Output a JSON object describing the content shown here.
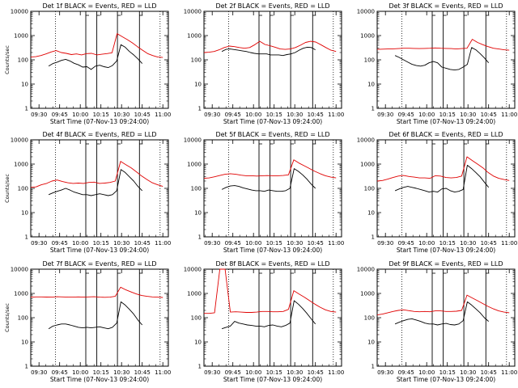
{
  "colors": {
    "events": "#000000",
    "lld": "#e00000",
    "background": "#ffffff"
  },
  "chart_data": [
    {
      "type": "line",
      "title": "Det 1f BLACK = Events, RED = LLD",
      "xlabel": "Start Time (07-Nov-13 09:24:00)",
      "ylabel": "Counts/sec",
      "xticks": [
        "09:30",
        "09:45",
        "10:00",
        "10:15",
        "10:30",
        "10:45",
        "11:00"
      ],
      "yticks": [
        "1",
        "10",
        "100",
        "1000",
        "10000"
      ],
      "yscale": "log",
      "ylim": [
        1,
        10000
      ],
      "xlim": [
        "09:24",
        "11:04"
      ],
      "vertical_lines": {
        "dotted": [
          "09:42",
          "10:58"
        ],
        "solid": [
          "10:04",
          "10:12",
          "10:27",
          "10:43"
        ]
      },
      "series": [
        {
          "color": "#000000",
          "x_start": "09:37",
          "x_end": "10:45",
          "y": [
            55,
            70,
            80,
            95,
            105,
            90,
            72,
            62,
            50,
            52,
            40,
            55,
            60,
            52,
            48,
            58,
            90,
            420,
            330,
            220,
            160,
            110,
            70
          ]
        },
        {
          "color": "#e00000",
          "x_start": "09:24",
          "x_end": "11:00",
          "y": [
            130,
            135,
            150,
            175,
            210,
            240,
            200,
            185,
            165,
            175,
            160,
            180,
            185,
            160,
            170,
            180,
            195,
            1200,
            900,
            680,
            500,
            350,
            250,
            180,
            150,
            130,
            125
          ]
        }
      ]
    },
    {
      "type": "line",
      "title": "Det 2f BLACK = Events, RED = LLD",
      "xlabel": "Start Time (07-Nov-13 09:24:00)",
      "ylabel": "",
      "xticks": [
        "09:30",
        "09:45",
        "10:00",
        "10:15",
        "10:30",
        "10:45",
        "11:00"
      ],
      "yticks": [
        "1",
        "10",
        "100",
        "1000",
        "10000"
      ],
      "yscale": "log",
      "ylim": [
        1,
        10000
      ],
      "xlim": [
        "09:24",
        "11:04"
      ],
      "vertical_lines": {
        "dotted": [
          "09:42",
          "10:58"
        ],
        "solid": [
          "10:04",
          "10:12",
          "10:27",
          "10:43"
        ]
      },
      "series": [
        {
          "color": "#000000",
          "x_start": "09:37",
          "x_end": "10:45",
          "y": [
            220,
            270,
            280,
            265,
            250,
            235,
            220,
            200,
            185,
            175,
            175,
            175,
            160,
            160,
            160,
            150,
            165,
            175,
            200,
            250,
            300,
            330,
            320,
            260
          ]
        },
        {
          "color": "#e00000",
          "x_start": "09:24",
          "x_end": "11:00",
          "y": [
            200,
            205,
            220,
            260,
            320,
            370,
            350,
            320,
            300,
            320,
            420,
            580,
            430,
            380,
            330,
            280,
            270,
            280,
            320,
            400,
            520,
            580,
            540,
            420,
            320,
            250,
            220
          ]
        }
      ]
    },
    {
      "type": "line",
      "title": "Det 3f BLACK = Events, RED = LLD",
      "xlabel": "Start Time (07-Nov-13 09:24:00)",
      "ylabel": "",
      "xticks": [
        "09:30",
        "09:45",
        "10:00",
        "10:15",
        "10:30",
        "10:45",
        "11:00"
      ],
      "yticks": [
        "1",
        "10",
        "100",
        "1000",
        "10000"
      ],
      "yscale": "log",
      "ylim": [
        1,
        10000
      ],
      "xlim": [
        "09:24",
        "11:04"
      ],
      "vertical_lines": {
        "dotted": [
          "09:42",
          "10:58"
        ],
        "solid": [
          "10:04",
          "10:12",
          "10:27",
          "10:43"
        ]
      },
      "series": [
        {
          "color": "#000000",
          "x_start": "09:37",
          "x_end": "10:45",
          "y": [
            150,
            125,
            100,
            80,
            65,
            58,
            55,
            60,
            75,
            85,
            75,
            50,
            45,
            40,
            38,
            40,
            50,
            65,
            320,
            260,
            180,
            120,
            75
          ]
        },
        {
          "color": "#e00000",
          "x_start": "09:24",
          "x_end": "11:00",
          "y": [
            270,
            275,
            280,
            285,
            290,
            300,
            300,
            295,
            290,
            295,
            300,
            310,
            300,
            295,
            290,
            280,
            290,
            300,
            700,
            520,
            420,
            350,
            300,
            280,
            260,
            250
          ]
        }
      ]
    },
    {
      "type": "line",
      "title": "Det 4f BLACK = Events, RED = LLD",
      "xlabel": "Start Time (07-Nov-13 09:24:00)",
      "ylabel": "Counts/sec",
      "xticks": [
        "09:30",
        "09:45",
        "10:00",
        "10:15",
        "10:30",
        "10:45",
        "11:00"
      ],
      "yticks": [
        "1",
        "10",
        "100",
        "1000",
        "10000"
      ],
      "yscale": "log",
      "ylim": [
        1,
        10000
      ],
      "xlim": [
        "09:24",
        "11:04"
      ],
      "vertical_lines": {
        "dotted": [
          "09:42",
          "10:58"
        ],
        "solid": [
          "10:04",
          "10:12",
          "10:27",
          "10:43"
        ]
      },
      "series": [
        {
          "color": "#000000",
          "x_start": "09:37",
          "x_end": "10:45",
          "y": [
            55,
            65,
            75,
            85,
            100,
            85,
            70,
            62,
            55,
            55,
            50,
            55,
            60,
            55,
            50,
            55,
            80,
            600,
            450,
            300,
            200,
            120,
            80
          ]
        },
        {
          "color": "#e00000",
          "x_start": "09:24",
          "x_end": "11:00",
          "y": [
            110,
            115,
            140,
            160,
            200,
            220,
            190,
            170,
            160,
            165,
            160,
            175,
            180,
            160,
            165,
            175,
            200,
            1300,
            950,
            700,
            480,
            320,
            230,
            170,
            140,
            120
          ]
        }
      ]
    },
    {
      "type": "line",
      "title": "Det 5f BLACK = Events, RED = LLD",
      "xlabel": "Start Time (07-Nov-13 09:24:00)",
      "ylabel": "",
      "xticks": [
        "09:30",
        "09:45",
        "10:00",
        "10:15",
        "10:30",
        "10:45",
        "11:00"
      ],
      "yticks": [
        "1",
        "10",
        "100",
        "1000",
        "10000"
      ],
      "yscale": "log",
      "ylim": [
        1,
        10000
      ],
      "xlim": [
        "09:24",
        "11:04"
      ],
      "vertical_lines": {
        "dotted": [
          "09:42",
          "10:58"
        ],
        "solid": [
          "10:04",
          "10:12",
          "10:27",
          "10:43"
        ]
      },
      "series": [
        {
          "color": "#000000",
          "x_start": "09:37",
          "x_end": "10:45",
          "y": [
            90,
            110,
            125,
            130,
            120,
            105,
            95,
            85,
            80,
            80,
            75,
            85,
            80,
            75,
            75,
            80,
            100,
            650,
            500,
            360,
            240,
            150,
            100
          ]
        },
        {
          "color": "#e00000",
          "x_start": "09:24",
          "x_end": "11:00",
          "y": [
            260,
            270,
            300,
            340,
            380,
            400,
            380,
            350,
            330,
            330,
            320,
            330,
            335,
            330,
            330,
            340,
            360,
            1500,
            1100,
            850,
            650,
            500,
            400,
            330,
            290,
            270
          ]
        }
      ]
    },
    {
      "type": "line",
      "title": "Det 6f BLACK = Events, RED = LLD",
      "xlabel": "Start Time (07-Nov-13 09:24:00)",
      "ylabel": "",
      "xticks": [
        "09:30",
        "09:45",
        "10:00",
        "10:15",
        "10:30",
        "10:45",
        "11:00"
      ],
      "yticks": [
        "1",
        "10",
        "100",
        "1000",
        "10000"
      ],
      "yscale": "log",
      "ylim": [
        1,
        10000
      ],
      "xlim": [
        "09:24",
        "11:04"
      ],
      "vertical_lines": {
        "dotted": [
          "09:42",
          "10:58"
        ],
        "solid": [
          "10:04",
          "10:12",
          "10:27",
          "10:43"
        ]
      },
      "series": [
        {
          "color": "#000000",
          "x_start": "09:37",
          "x_end": "10:45",
          "y": [
            80,
            95,
            110,
            120,
            110,
            100,
            90,
            80,
            70,
            75,
            70,
            95,
            100,
            80,
            70,
            75,
            90,
            900,
            650,
            450,
            300,
            180,
            110
          ]
        },
        {
          "color": "#e00000",
          "x_start": "09:24",
          "x_end": "11:00",
          "y": [
            200,
            210,
            240,
            280,
            320,
            340,
            310,
            290,
            270,
            270,
            260,
            330,
            320,
            280,
            270,
            280,
            320,
            2000,
            1400,
            1000,
            700,
            450,
            320,
            260,
            230,
            210
          ]
        }
      ]
    },
    {
      "type": "line",
      "title": "Det 7f BLACK = Events, RED = LLD",
      "xlabel": "Start Time (07-Nov-13 09:24:00)",
      "ylabel": "Counts/sec",
      "xticks": [
        "09:30",
        "09:45",
        "10:00",
        "10:15",
        "10:30",
        "10:45",
        "11:00"
      ],
      "yticks": [
        "1",
        "10",
        "100",
        "1000",
        "10000"
      ],
      "yscale": "log",
      "ylim": [
        1,
        10000
      ],
      "xlim": [
        "09:24",
        "11:04"
      ],
      "vertical_lines": {
        "dotted": [
          "09:42",
          "10:58"
        ],
        "solid": [
          "10:04",
          "10:12",
          "10:27",
          "10:43"
        ]
      },
      "series": [
        {
          "color": "#000000",
          "x_start": "09:37",
          "x_end": "10:45",
          "y": [
            35,
            45,
            50,
            55,
            55,
            50,
            45,
            40,
            38,
            40,
            38,
            40,
            42,
            38,
            35,
            40,
            60,
            450,
            330,
            220,
            140,
            80,
            50
          ]
        },
        {
          "color": "#e00000",
          "x_start": "09:24",
          "x_end": "11:00",
          "y": [
            700,
            720,
            720,
            710,
            700,
            730,
            720,
            700,
            700,
            720,
            700,
            720,
            730,
            700,
            690,
            700,
            760,
            1800,
            1400,
            1150,
            950,
            820,
            760,
            720,
            700,
            680
          ]
        }
      ]
    },
    {
      "type": "line",
      "title": "Det 8f BLACK = Events, RED = LLD",
      "xlabel": "Start Time (07-Nov-13 09:24:00)",
      "ylabel": "",
      "xticks": [
        "09:30",
        "09:45",
        "10:00",
        "10:15",
        "10:30",
        "10:45",
        "11:00"
      ],
      "yticks": [
        "1",
        "10",
        "100",
        "1000",
        "10000"
      ],
      "yscale": "log",
      "ylim": [
        1,
        10000
      ],
      "xlim": [
        "09:24",
        "11:04"
      ],
      "vertical_lines": {
        "dotted": [
          "09:42",
          "10:58"
        ],
        "solid": [
          "10:04",
          "10:12",
          "10:27",
          "10:43"
        ]
      },
      "series": [
        {
          "color": "#000000",
          "x_start": "09:37",
          "x_end": "10:45",
          "y": [
            35,
            40,
            45,
            70,
            60,
            55,
            50,
            48,
            45,
            45,
            42,
            48,
            50,
            45,
            42,
            48,
            60,
            500,
            360,
            240,
            150,
            90,
            55
          ]
        },
        {
          "color": "#e00000",
          "x_start": "09:24",
          "x_end": "11:00",
          "y": [
            150,
            150,
            160,
            10000,
            10000,
            170,
            175,
            170,
            165,
            165,
            170,
            180,
            180,
            175,
            175,
            180,
            220,
            1300,
            950,
            700,
            500,
            360,
            270,
            210,
            180,
            170
          ]
        }
      ]
    },
    {
      "type": "line",
      "title": "Det 9f BLACK = Events, RED = LLD",
      "xlabel": "Start Time (07-Nov-13 09:24:00)",
      "ylabel": "",
      "xticks": [
        "09:30",
        "09:45",
        "10:00",
        "10:15",
        "10:30",
        "10:45",
        "11:00"
      ],
      "yticks": [
        "1",
        "10",
        "100",
        "1000",
        "10000"
      ],
      "yscale": "log",
      "ylim": [
        1,
        10000
      ],
      "xlim": [
        "09:24",
        "11:04"
      ],
      "vertical_lines": {
        "dotted": [
          "09:42",
          "10:58"
        ],
        "solid": [
          "10:04",
          "10:12",
          "10:27",
          "10:43"
        ]
      },
      "series": [
        {
          "color": "#000000",
          "x_start": "09:37",
          "x_end": "10:45",
          "y": [
            55,
            65,
            75,
            85,
            90,
            80,
            70,
            60,
            55,
            55,
            50,
            55,
            58,
            52,
            50,
            55,
            75,
            450,
            330,
            230,
            160,
            100,
            70
          ]
        },
        {
          "color": "#e00000",
          "x_start": "09:24",
          "x_end": "11:00",
          "y": [
            130,
            140,
            160,
            180,
            200,
            210,
            195,
            180,
            175,
            180,
            175,
            190,
            190,
            180,
            180,
            185,
            200,
            850,
            650,
            500,
            380,
            290,
            230,
            190,
            170,
            160
          ]
        }
      ]
    }
  ]
}
